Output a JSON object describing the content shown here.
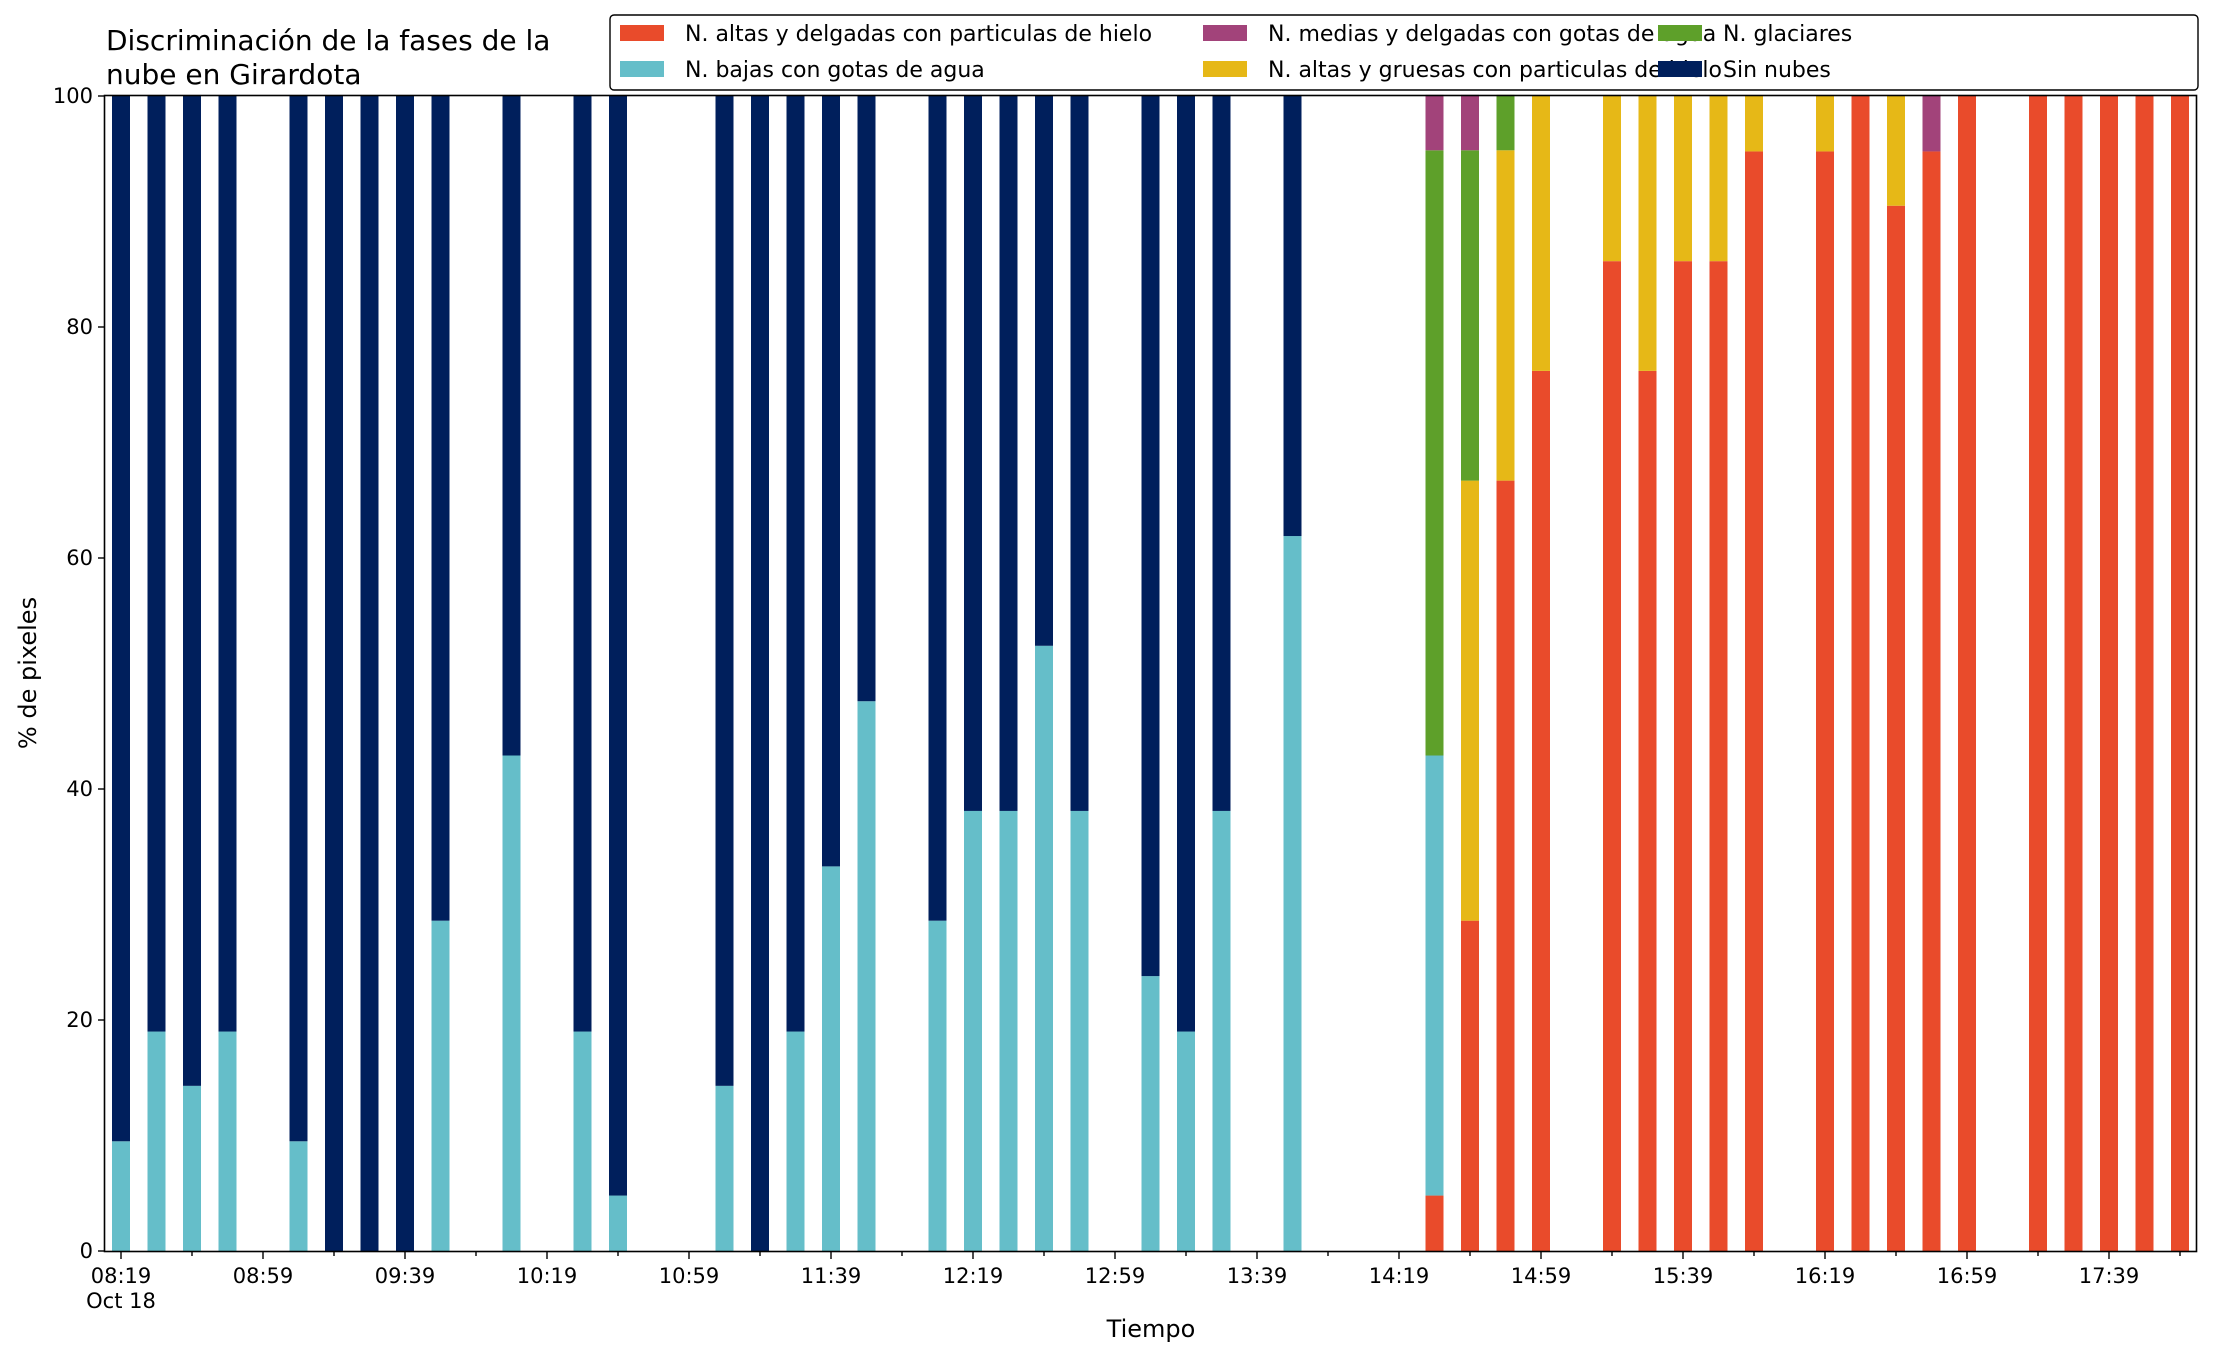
{
  "chart_data": {
    "type": "bar",
    "stacked": true,
    "title": "Discriminación de la fases de la nube en Girardota",
    "title_lines": [
      "Discriminación de la fases de la",
      "nube en Girardota"
    ],
    "xlabel": "Tiempo",
    "ylabel": "% de pixeles",
    "ylim": [
      0,
      100
    ],
    "yticks": [
      0,
      20,
      40,
      60,
      80,
      100
    ],
    "x_start": "08:19",
    "x_step_minutes": 10,
    "x_count": 59,
    "xtick_labels": [
      "08:19",
      "08:59",
      "09:39",
      "10:19",
      "10:59",
      "11:39",
      "12:19",
      "12:59",
      "13:39",
      "14:19",
      "14:59",
      "15:39",
      "16:19",
      "16:59",
      "17:39"
    ],
    "x_sublabel": "Oct 18",
    "legend_location": "top-right",
    "grid": false,
    "series": [
      {
        "name": "N. altas y delgadas con particulas de hielo",
        "color": "#e94b2b",
        "values": [
          0,
          0,
          0,
          0,
          0,
          0,
          0,
          0,
          0,
          0,
          0,
          0,
          0,
          0,
          0,
          0,
          0,
          0,
          0,
          0,
          0,
          0,
          0,
          0,
          0,
          0,
          0,
          0,
          0,
          0,
          0,
          0,
          0,
          0,
          0,
          0,
          0,
          4.8,
          28.6,
          66.7,
          76.2,
          0,
          85.7,
          76.2,
          85.7,
          85.7,
          95.2,
          0,
          95.2,
          100,
          90.5,
          95.2,
          100,
          0,
          100,
          100,
          100,
          100,
          100
        ]
      },
      {
        "name": "N. altas y gruesas con particulas de hielo",
        "color": "#e6b817",
        "values": [
          0,
          0,
          0,
          0,
          0,
          0,
          0,
          0,
          0,
          0,
          0,
          0,
          0,
          0,
          0,
          0,
          0,
          0,
          0,
          0,
          0,
          0,
          0,
          0,
          0,
          0,
          0,
          0,
          0,
          0,
          0,
          0,
          0,
          0,
          0,
          0,
          0,
          0,
          38.1,
          28.6,
          23.8,
          0,
          14.3,
          23.8,
          14.3,
          14.3,
          4.8,
          0,
          4.8,
          0,
          9.5,
          0,
          0,
          0,
          0,
          0,
          0,
          0,
          0
        ]
      },
      {
        "name": "N. bajas con gotas de agua",
        "color": "#65bec9",
        "values": [
          9.5,
          19,
          14.3,
          19,
          0,
          9.5,
          0,
          0,
          0,
          28.6,
          0,
          42.9,
          0,
          19,
          4.8,
          0,
          0,
          14.3,
          0,
          19,
          33.3,
          47.6,
          0,
          28.6,
          38.1,
          38.1,
          52.4,
          38.1,
          0,
          23.8,
          19,
          38.1,
          0,
          61.9,
          0,
          0,
          0,
          38.1,
          0,
          0,
          0,
          0,
          0,
          0,
          0,
          0,
          0,
          0,
          0,
          0,
          0,
          0,
          0,
          0,
          0,
          0,
          0,
          0,
          0
        ]
      },
      {
        "name": "N. glaciares",
        "color": "#5ea02a",
        "values": [
          0,
          0,
          0,
          0,
          0,
          0,
          0,
          0,
          0,
          0,
          0,
          0,
          0,
          0,
          0,
          0,
          0,
          0,
          0,
          0,
          0,
          0,
          0,
          0,
          0,
          0,
          0,
          0,
          0,
          0,
          0,
          0,
          0,
          0,
          0,
          0,
          0,
          52.4,
          28.6,
          4.8,
          0,
          0,
          0,
          0,
          0,
          0,
          0,
          0,
          0,
          0,
          0,
          0,
          0,
          0,
          0,
          0,
          0,
          0,
          0
        ]
      },
      {
        "name": "N. medias y delgadas con gotas de agua",
        "color": "#a2437a",
        "values": [
          0,
          0,
          0,
          0,
          0,
          0,
          0,
          0,
          0,
          0,
          0,
          0,
          0,
          0,
          0,
          0,
          0,
          0,
          0,
          0,
          0,
          0,
          0,
          0,
          0,
          0,
          0,
          0,
          0,
          0,
          0,
          0,
          0,
          0,
          0,
          0,
          0,
          4.8,
          4.8,
          0,
          0,
          0,
          0,
          0,
          0,
          0,
          0,
          0,
          0,
          0,
          0,
          4.8,
          0,
          0,
          0,
          0,
          0,
          0,
          0
        ]
      },
      {
        "name": "Sin nubes",
        "color": "#001f5c",
        "values": [
          90.5,
          81,
          85.7,
          81,
          0,
          90.5,
          100,
          100,
          100,
          71.4,
          0,
          57.1,
          0,
          81,
          95.2,
          0,
          0,
          85.7,
          100,
          81,
          66.7,
          52.4,
          0,
          71.4,
          61.9,
          61.9,
          47.6,
          61.9,
          0,
          76.2,
          81,
          61.9,
          0,
          38.1,
          0,
          0,
          0,
          0,
          0,
          0,
          0,
          0,
          0,
          0,
          0,
          0,
          0,
          0,
          0,
          0,
          0,
          0,
          0,
          0,
          0,
          0,
          0,
          0,
          0
        ]
      }
    ]
  }
}
